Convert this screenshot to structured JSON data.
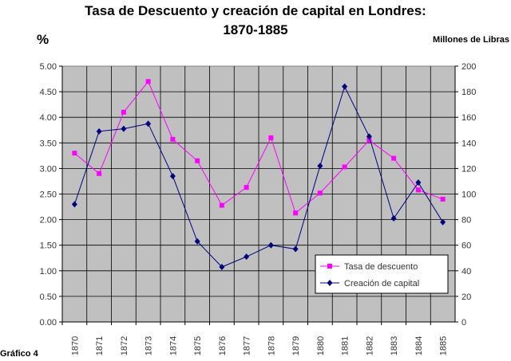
{
  "chart_data": {
    "type": "line",
    "title_line1": "Tasa de Descuento y creación de capital en Londres:",
    "title_line2": "1870-1885",
    "ylabel_left": "%",
    "ylabel_right": "Millones de Libras",
    "caption": "Gráfico 4",
    "x": [
      "1870",
      "1871",
      "1872",
      "1873",
      "1874",
      "1875",
      "1876",
      "1877",
      "1878",
      "1879",
      "1880",
      "1881",
      "1882",
      "1883",
      "1884",
      "1885"
    ],
    "y_left_ticks": [
      "0.00",
      "0.50",
      "1.00",
      "1.50",
      "2.00",
      "2.50",
      "3.00",
      "3.50",
      "4.00",
      "4.50",
      "5.00"
    ],
    "y_right_ticks": [
      "0",
      "20",
      "40",
      "60",
      "80",
      "100",
      "120",
      "140",
      "160",
      "180",
      "200"
    ],
    "ylim_left": [
      0,
      5
    ],
    "ylim_right": [
      0,
      200
    ],
    "grid": true,
    "legend_position": "bottom-right",
    "series": [
      {
        "name": "Tasa de descuento",
        "axis": "left",
        "color": "#ff00ff",
        "marker": "square",
        "values": [
          3.3,
          2.9,
          4.1,
          4.7,
          3.57,
          3.15,
          2.28,
          2.63,
          3.6,
          2.13,
          2.52,
          3.03,
          3.55,
          3.2,
          2.58,
          2.4
        ]
      },
      {
        "name": "Creación de capital",
        "axis": "right",
        "color": "#000080",
        "marker": "diamond",
        "values": [
          92,
          149,
          151,
          155,
          114,
          63,
          43,
          51,
          60,
          57,
          122,
          184,
          145,
          81,
          109,
          78
        ]
      }
    ]
  }
}
